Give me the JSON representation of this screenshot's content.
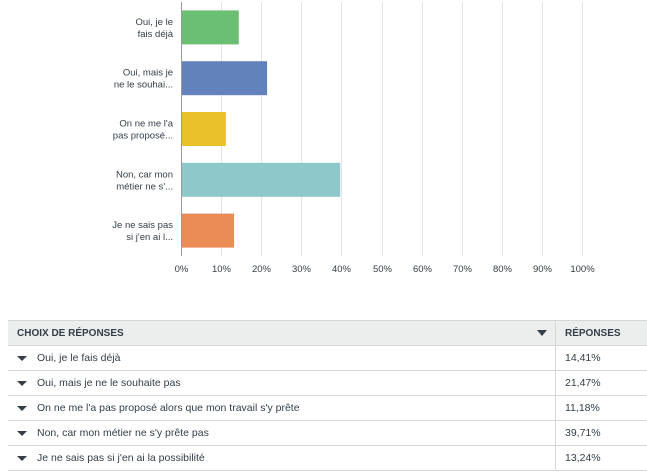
{
  "chart_data": {
    "type": "bar",
    "orientation": "horizontal",
    "categories": [
      [
        "Oui, je le",
        "fais déjà"
      ],
      [
        "Oui, mais je",
        "ne le souhai..."
      ],
      [
        "On ne me l'a",
        "pas proposé..."
      ],
      [
        "Non, car mon",
        "métier ne s'..."
      ],
      [
        "Je ne sais pas",
        "si j'en ai l..."
      ]
    ],
    "values": [
      14.41,
      21.47,
      11.18,
      39.71,
      13.24
    ],
    "colors": [
      "#6bbf73",
      "#6381bd",
      "#ebc129",
      "#8ec8cb",
      "#eb8c56"
    ],
    "xlim": [
      0,
      100
    ],
    "xticks": [
      "0%",
      "10%",
      "20%",
      "30%",
      "40%",
      "50%",
      "60%",
      "70%",
      "80%",
      "90%",
      "100%"
    ],
    "grid": true
  },
  "table": {
    "header_choice": "CHOIX DE RÉPONSES",
    "header_responses": "RÉPONSES",
    "rows": [
      {
        "label": "Oui, je le fais déjà",
        "value": "14,41%"
      },
      {
        "label": "Oui, mais je ne le souhaite pas",
        "value": "21,47%"
      },
      {
        "label": "On ne me l'a pas proposé alors que mon travail s'y prête",
        "value": "11,18%"
      },
      {
        "label": "Non, car mon métier ne s'y prête pas",
        "value": "39,71%"
      },
      {
        "label": "Je ne sais pas si j'en ai la possibilité",
        "value": "13,24%"
      }
    ]
  }
}
